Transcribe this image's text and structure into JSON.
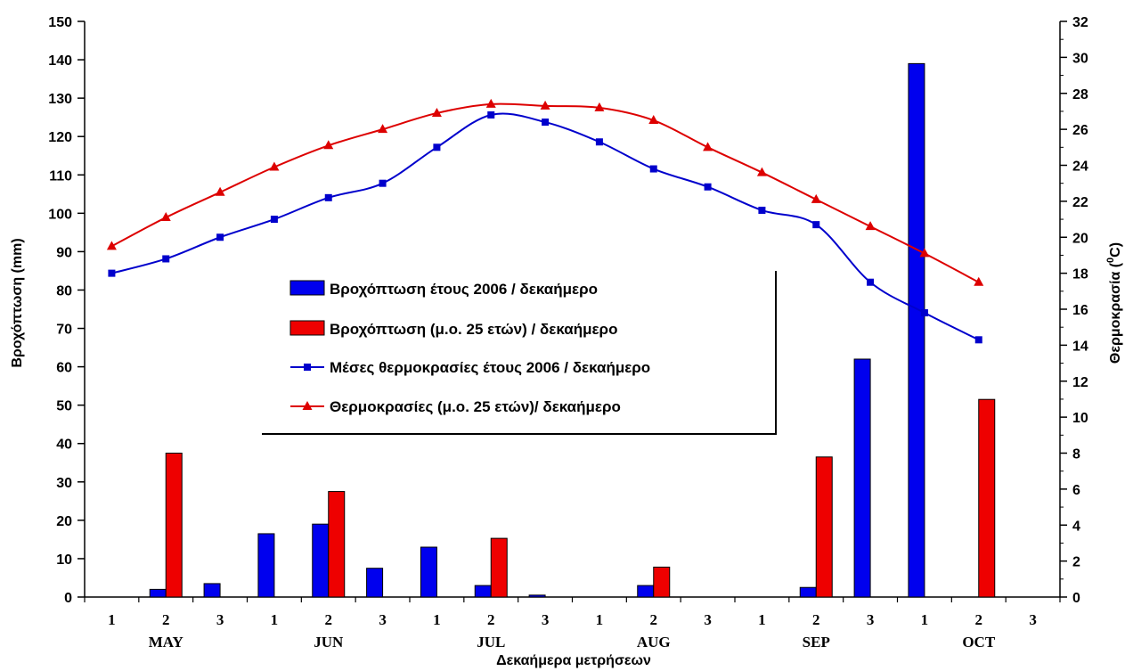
{
  "chart_data": {
    "type": "bar",
    "ylabel_left": "Βροχόπτωση (mm)",
    "ylabel_right_prefix": "Θερμοκρασία (",
    "ylabel_right_sup": "0",
    "ylabel_right_suffix": "C)",
    "xlabel": "Δεκαήμερα μετρήσεων",
    "ylim_left": [
      0,
      150
    ],
    "ylim_right": [
      0,
      32
    ],
    "yticks_left": [
      0,
      10,
      20,
      30,
      40,
      50,
      60,
      70,
      80,
      90,
      100,
      110,
      120,
      130,
      140,
      150
    ],
    "yticks_right": [
      0,
      2,
      4,
      6,
      8,
      10,
      12,
      14,
      16,
      18,
      20,
      22,
      24,
      26,
      28,
      30,
      32
    ],
    "categories": [
      "1",
      "2",
      "3",
      "1",
      "2",
      "3",
      "1",
      "2",
      "3",
      "1",
      "2",
      "3",
      "1",
      "2",
      "3",
      "1",
      "2",
      "3"
    ],
    "months": [
      "MAY",
      "JUN",
      "JUL",
      "AUG",
      "SEP",
      "OCT"
    ],
    "series": [
      {
        "name": "Βροχόπτωση έτους 2006 / δεκαήμερο",
        "kind": "bar",
        "axis": "left",
        "color": "#0000ee",
        "values": [
          0,
          2,
          3.5,
          16.5,
          19,
          7.5,
          13,
          3,
          0.5,
          0,
          3,
          0,
          0,
          2.5,
          62,
          139,
          0,
          0
        ]
      },
      {
        "name": "Βροχόπτωση (μ.ο. 25 ετών) / δεκαήμερο",
        "kind": "bar",
        "axis": "left",
        "color": "#ee0000",
        "values": [
          0,
          37.5,
          0,
          0,
          27.5,
          0,
          0,
          15.3,
          0,
          0,
          7.8,
          0,
          0,
          36.5,
          0,
          0,
          51.5,
          0
        ]
      },
      {
        "name": "Μέσες θερμοκρασίες έτους 2006 / δεκαήμερο",
        "kind": "line",
        "axis": "right",
        "color": "#0000cc",
        "marker": "square",
        "values": [
          18.0,
          18.8,
          20.0,
          21.0,
          22.2,
          23.0,
          25.0,
          26.8,
          26.4,
          25.3,
          23.8,
          22.8,
          21.5,
          20.7,
          17.5,
          15.8,
          14.3,
          null
        ]
      },
      {
        "name": "Θερμοκρασίες (μ.ο. 25 ετών)/ δεκαήμερο",
        "kind": "line",
        "axis": "right",
        "color": "#dd0000",
        "marker": "triangle",
        "values": [
          19.5,
          21.1,
          22.5,
          23.9,
          25.1,
          26.0,
          26.9,
          27.4,
          27.3,
          27.2,
          26.5,
          25.0,
          23.6,
          22.1,
          20.6,
          19.1,
          17.5,
          null
        ]
      }
    ],
    "grid": false,
    "legend_position": "center"
  }
}
